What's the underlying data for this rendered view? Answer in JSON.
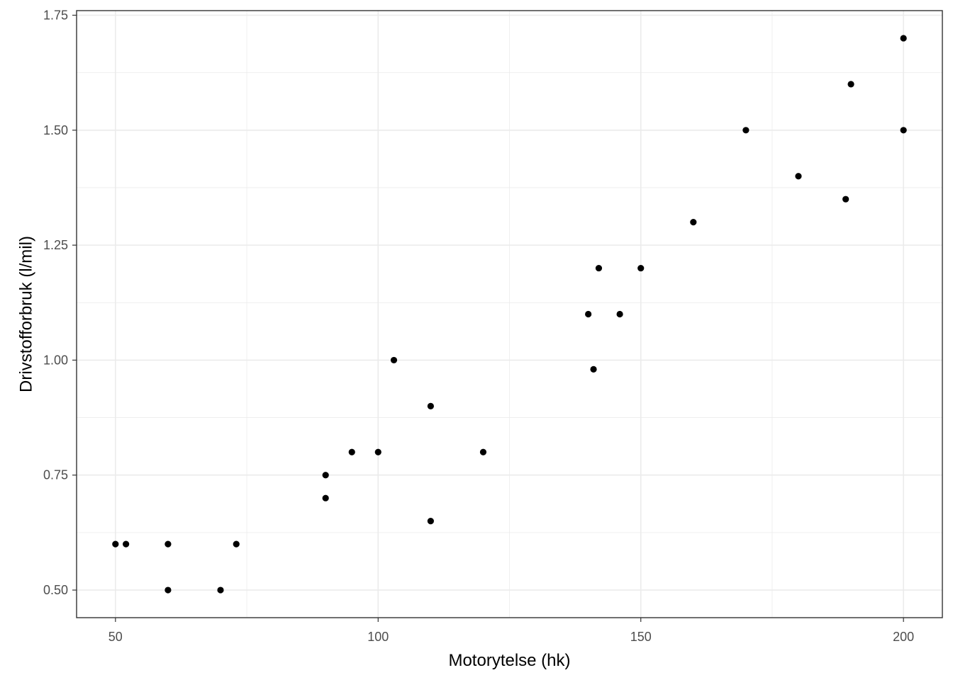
{
  "chart_data": {
    "type": "scatter",
    "title": "",
    "xlabel": "Motorytelse (hk)",
    "ylabel": "Drivstofforbruk (l/mil)",
    "xlim": [
      42.6,
      207.4
    ],
    "ylim": [
      0.44,
      1.76
    ],
    "x_ticks": [
      50,
      100,
      150,
      200
    ],
    "x_tick_labels": [
      "50",
      "100",
      "150",
      "200"
    ],
    "x_minor_ticks": [
      75,
      125,
      175
    ],
    "y_ticks": [
      0.5,
      0.75,
      1.0,
      1.25,
      1.5,
      1.75
    ],
    "y_tick_labels": [
      "0.50",
      "0.75",
      "1.00",
      "1.25",
      "1.50",
      "1.75"
    ],
    "y_minor_ticks": [
      0.625,
      0.875,
      1.125,
      1.375,
      1.625
    ],
    "grid": true,
    "legend": "none",
    "colors": {
      "point": "#000000",
      "grid": "#ebebeb",
      "panel_border": "#333333",
      "tick_label": "#4d4d4d",
      "axis_title": "#000000",
      "background": "#ffffff"
    },
    "points": [
      {
        "x": 50,
        "y": 0.6
      },
      {
        "x": 52,
        "y": 0.6
      },
      {
        "x": 60,
        "y": 0.6
      },
      {
        "x": 60,
        "y": 0.5
      },
      {
        "x": 70,
        "y": 0.5
      },
      {
        "x": 73,
        "y": 0.6
      },
      {
        "x": 90,
        "y": 0.75
      },
      {
        "x": 90,
        "y": 0.7
      },
      {
        "x": 95,
        "y": 0.8
      },
      {
        "x": 100,
        "y": 0.8
      },
      {
        "x": 103,
        "y": 1.0
      },
      {
        "x": 110,
        "y": 0.9
      },
      {
        "x": 110,
        "y": 0.65
      },
      {
        "x": 120,
        "y": 0.8
      },
      {
        "x": 140,
        "y": 1.1
      },
      {
        "x": 141,
        "y": 0.98
      },
      {
        "x": 142,
        "y": 1.2
      },
      {
        "x": 146,
        "y": 1.1
      },
      {
        "x": 150,
        "y": 1.2
      },
      {
        "x": 160,
        "y": 1.3
      },
      {
        "x": 170,
        "y": 1.5
      },
      {
        "x": 180,
        "y": 1.4
      },
      {
        "x": 189,
        "y": 1.35
      },
      {
        "x": 190,
        "y": 1.6
      },
      {
        "x": 200,
        "y": 1.7
      },
      {
        "x": 200,
        "y": 1.5
      }
    ]
  }
}
